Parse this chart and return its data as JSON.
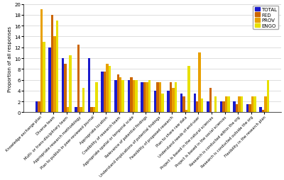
{
  "categories": [
    "Knowledge exchange plan",
    "Diverse team",
    "Multi- or trans-disciplinary team",
    "Appropriate research methodology",
    "Plan to publish in peer-reviewed journal",
    "Appropriate location",
    "Credibility of research team",
    "Appropriate spatial or temporal scale",
    "Relevance of potential findings",
    "Understand implications of potential findings",
    "Feasibility of proposed research",
    "Plan to share raw data",
    "Understand needs of end-user",
    "Project is based in the natural sciences",
    "Project is based in the social sciences",
    "Research is conducted within the org",
    "Research is conducted outside the org",
    "Flexibility in the research plan"
  ],
  "series_order": [
    "TOTAL",
    "FED",
    "PROV",
    "ENGO"
  ],
  "TOTAL": [
    2,
    12,
    10,
    1,
    10,
    7.5,
    6,
    6,
    5.5,
    4,
    4,
    3.5,
    3.5,
    2,
    2,
    2,
    1.5,
    1
  ],
  "FED": [
    2,
    18,
    9,
    12.5,
    1,
    7.5,
    7,
    6.5,
    5.5,
    5.5,
    5.5,
    3,
    2,
    4.5,
    2,
    1.5,
    1.5,
    0.5
  ],
  "PROV": [
    19,
    14,
    1,
    1,
    1,
    9,
    6.5,
    6,
    5.5,
    5.5,
    4.5,
    0.5,
    11,
    0,
    3,
    3,
    3,
    3
  ],
  "ENGO": [
    13,
    17,
    10.5,
    4.5,
    5.5,
    8.5,
    6,
    6,
    6,
    3.5,
    5.5,
    8.5,
    2.5,
    3,
    3,
    3,
    3,
    6
  ],
  "bar_colors": {
    "TOTAL": "#1a1acc",
    "FED": "#cc6600",
    "PROV": "#e8a000",
    "ENGO": "#e8e000"
  },
  "ylabel": "Proportion of all responses",
  "ylim": [
    0,
    20
  ],
  "yticks": [
    0,
    2,
    4,
    6,
    8,
    10,
    12,
    14,
    16,
    18,
    20
  ]
}
